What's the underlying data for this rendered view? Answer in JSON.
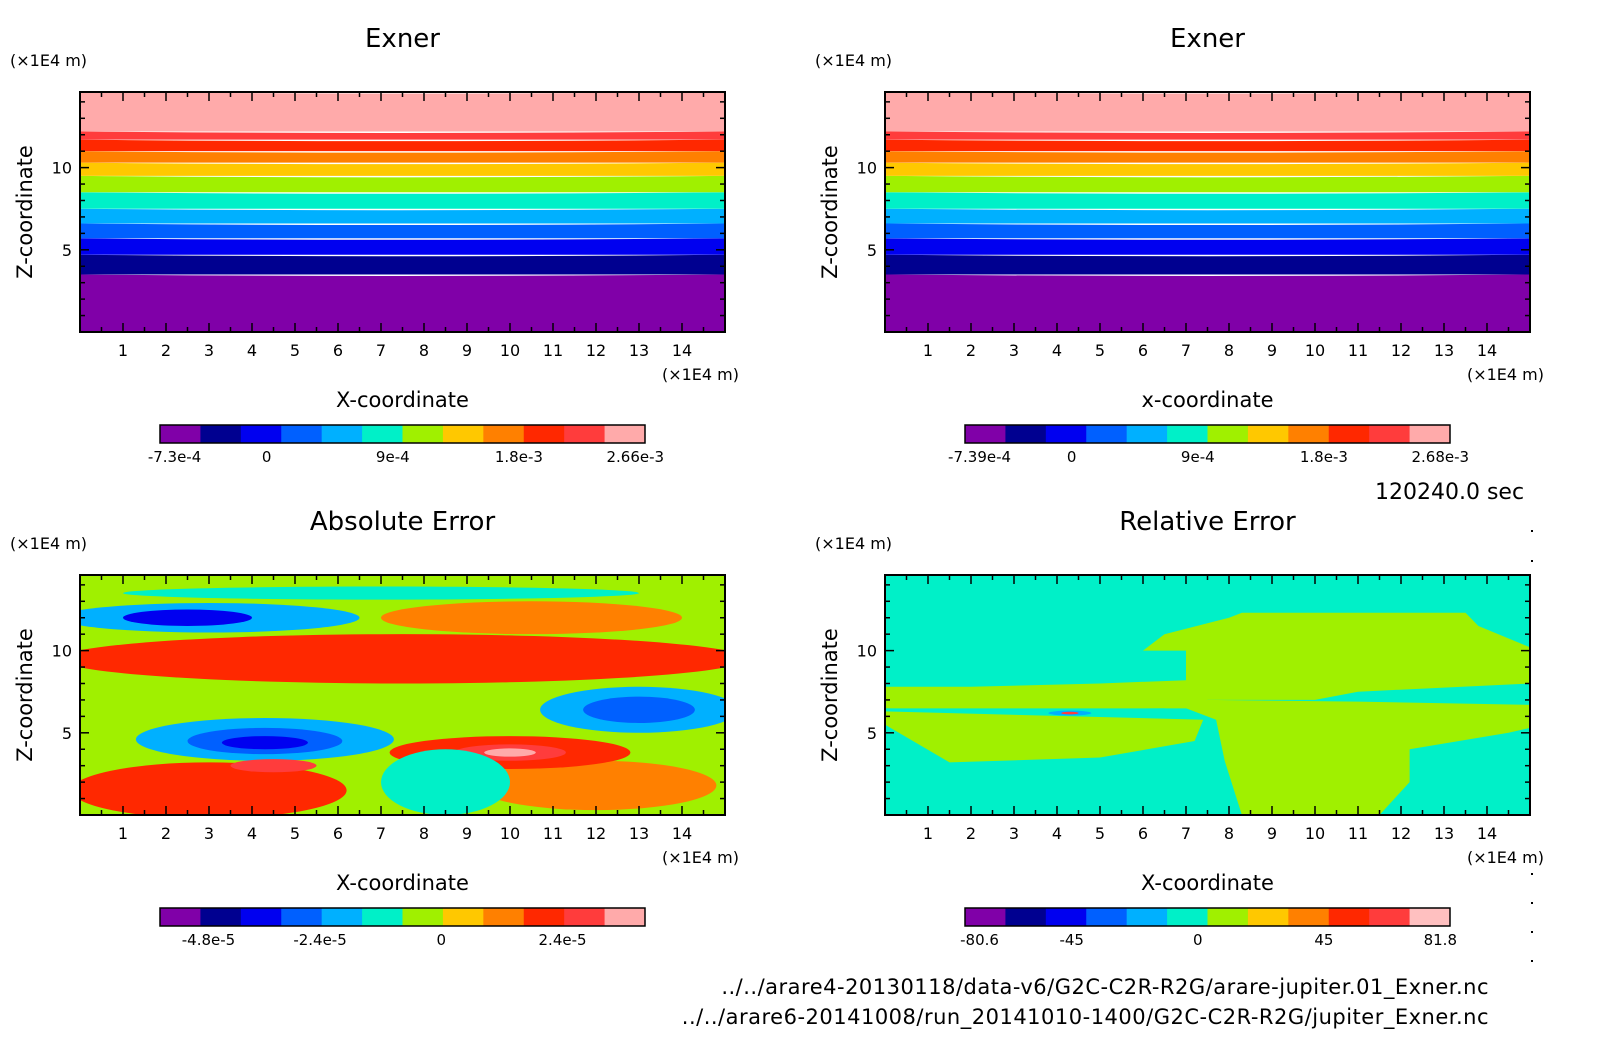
{
  "sim_time": "120240.0 sec",
  "files": [
    "../../arare4-20130118/data-v6/G2C-C2R-R2G/arare-jupiter.01_Exner.nc",
    "../../arare6-20141008/run_20141010-1400/G2C-C2R-R2G/jupiter_Exner.nc"
  ],
  "colors": {
    "palette": [
      "#8000a8",
      "#000090",
      "#0000f0",
      "#0060ff",
      "#00b0ff",
      "#00f0c8",
      "#a0f000",
      "#ffc800",
      "#ff8000",
      "#ff2800",
      "#ff3c3c",
      "#ffaaaa"
    ],
    "pastel": "#ffc0c0"
  },
  "chart_data": [
    {
      "type": "heatmap",
      "title": "Exner",
      "xlabel": "X-coordinate",
      "ylabel": "Z-coordinate",
      "x_unit": "(×1E4 m)",
      "y_unit": "(×1E4 m)",
      "xlim": [
        0,
        15
      ],
      "ylim": [
        0,
        14.6
      ],
      "x_ticks": [
        1,
        2,
        3,
        4,
        5,
        6,
        7,
        8,
        9,
        10,
        11,
        12,
        13,
        14
      ],
      "y_ticks": [
        5,
        10
      ],
      "field": "horizontal bands",
      "band_tops_z": [
        3.5,
        4.7,
        5.7,
        6.6,
        7.5,
        8.5,
        9.5,
        10.3,
        11.0,
        11.7,
        12.2,
        14.6
      ],
      "colorbar_ticks": [
        "-7.3e-4",
        "0",
        "9e-4",
        "1.8e-3",
        "2.66e-3"
      ]
    },
    {
      "type": "heatmap",
      "title": "Exner",
      "xlabel": "x-coordinate",
      "ylabel": "Z-coordinate",
      "x_unit": "(×1E4 m)",
      "y_unit": "(×1E4 m)",
      "xlim": [
        0,
        15
      ],
      "ylim": [
        0,
        14.6
      ],
      "x_ticks": [
        1,
        2,
        3,
        4,
        5,
        6,
        7,
        8,
        9,
        10,
        11,
        12,
        13,
        14
      ],
      "y_ticks": [
        5,
        10
      ],
      "field": "horizontal bands",
      "band_tops_z": [
        3.5,
        4.7,
        5.7,
        6.6,
        7.5,
        8.5,
        9.5,
        10.3,
        11.0,
        11.7,
        12.2,
        14.6
      ],
      "colorbar_ticks": [
        "-7.39e-4",
        "0",
        "9e-4",
        "1.8e-3",
        "2.68e-3"
      ]
    },
    {
      "type": "heatmap",
      "title": "Absolute Error",
      "xlabel": "X-coordinate",
      "ylabel": "Z-coordinate",
      "x_unit": "(×1E4 m)",
      "y_unit": "(×1E4 m)",
      "xlim": [
        0,
        15
      ],
      "ylim": [
        0,
        14.6
      ],
      "x_ticks": [
        1,
        2,
        3,
        4,
        5,
        6,
        7,
        8,
        9,
        10,
        11,
        12,
        13,
        14
      ],
      "y_ticks": [
        5,
        10
      ],
      "field": "blobs",
      "background_level": 6,
      "blobs": [
        {
          "x": 7.5,
          "z": 9.5,
          "rx": 8.0,
          "rz": 1.5,
          "level": 9
        },
        {
          "x": 3.0,
          "z": 1.5,
          "rx": 3.2,
          "rz": 1.7,
          "level": 9
        },
        {
          "x": 12.0,
          "z": 1.8,
          "rx": 2.8,
          "rz": 1.5,
          "level": 8
        },
        {
          "x": 10.5,
          "z": 12.0,
          "rx": 3.5,
          "rz": 1.0,
          "level": 8
        },
        {
          "x": 10.0,
          "z": 3.8,
          "rx": 2.8,
          "rz": 1.0,
          "level": 9
        },
        {
          "x": 10.0,
          "z": 3.8,
          "rx": 1.3,
          "rz": 0.5,
          "level": 10
        },
        {
          "x": 10.0,
          "z": 3.8,
          "rx": 0.6,
          "rz": 0.25,
          "level": 11
        },
        {
          "x": 4.3,
          "z": 4.6,
          "rx": 3.0,
          "rz": 1.3,
          "level": 4
        },
        {
          "x": 4.3,
          "z": 4.5,
          "rx": 1.8,
          "rz": 0.8,
          "level": 3
        },
        {
          "x": 4.3,
          "z": 4.4,
          "rx": 1.0,
          "rz": 0.4,
          "level": 2
        },
        {
          "x": 13.0,
          "z": 6.4,
          "rx": 2.3,
          "rz": 1.4,
          "level": 4
        },
        {
          "x": 13.0,
          "z": 6.4,
          "rx": 1.3,
          "rz": 0.8,
          "level": 3
        },
        {
          "x": 3.0,
          "z": 12.0,
          "rx": 3.5,
          "rz": 0.9,
          "level": 4
        },
        {
          "x": 2.5,
          "z": 12.0,
          "rx": 1.5,
          "rz": 0.5,
          "level": 2
        },
        {
          "x": 7.0,
          "z": 13.5,
          "rx": 6.0,
          "rz": 0.4,
          "level": 5
        },
        {
          "x": 4.5,
          "z": 3.0,
          "rx": 1.0,
          "rz": 0.4,
          "level": 10
        },
        {
          "x": 8.5,
          "z": 2.0,
          "rx": 1.5,
          "rz": 2.0,
          "level": 5
        }
      ],
      "colorbar_ticks": [
        "-4.8e-5",
        "-2.4e-5",
        "0",
        "2.4e-5"
      ]
    },
    {
      "type": "heatmap",
      "title": "Relative Error",
      "xlabel": "X-coordinate",
      "ylabel": "Z-coordinate",
      "x_unit": "(×1E4 m)",
      "y_unit": "(×1E4 m)",
      "xlim": [
        0,
        15
      ],
      "ylim": [
        0,
        14.6
      ],
      "x_ticks": [
        1,
        2,
        3,
        4,
        5,
        6,
        7,
        8,
        9,
        10,
        11,
        12,
        13,
        14
      ],
      "y_ticks": [
        5,
        10
      ],
      "field": "regions",
      "background_level": 5,
      "regions_xz": [
        [
          [
            0,
            10
          ],
          [
            3.5,
            10
          ],
          [
            6,
            10
          ],
          [
            6.5,
            11
          ],
          [
            8,
            12
          ],
          [
            8.3,
            12.3
          ],
          [
            13.5,
            12.3
          ],
          [
            13.8,
            11.5
          ],
          [
            15,
            10.2
          ],
          [
            15,
            8
          ],
          [
            11,
            7.5
          ],
          [
            10,
            7
          ],
          [
            7.5,
            7
          ],
          [
            7,
            6.5
          ],
          [
            0,
            6.5
          ],
          [
            0,
            7.8
          ],
          [
            2,
            7.8
          ],
          [
            5,
            8
          ],
          [
            7,
            8.2
          ],
          [
            7,
            10
          ],
          [
            0,
            10
          ]
        ],
        [
          [
            0,
            6.5
          ],
          [
            7,
            6.5
          ],
          [
            7.7,
            5.8
          ],
          [
            7.9,
            3.3
          ],
          [
            8.3,
            0
          ],
          [
            11.5,
            0
          ],
          [
            12.2,
            2.0
          ],
          [
            12.2,
            4.0
          ],
          [
            14.5,
            5.0
          ],
          [
            15,
            5.3
          ],
          [
            15,
            6.7
          ],
          [
            11,
            6.9
          ],
          [
            7.5,
            7.0
          ],
          [
            6.5,
            6.5
          ],
          [
            2,
            6.6
          ],
          [
            0,
            6.5
          ]
        ],
        [
          [
            0,
            5.5
          ],
          [
            1.5,
            3.2
          ],
          [
            5,
            3.5
          ],
          [
            7.2,
            4.5
          ],
          [
            7.4,
            5.8
          ],
          [
            0,
            6.3
          ]
        ]
      ],
      "spots": [
        {
          "x": 4.3,
          "z": 6.2,
          "rx": 0.5,
          "rz": 0.15,
          "level": 4
        },
        {
          "x": 4.3,
          "z": 6.2,
          "rx": 0.2,
          "rz": 0.08,
          "level": 10
        }
      ],
      "colorbar_ticks": [
        "-80.6",
        "-45",
        "0",
        "45",
        "81.8"
      ]
    }
  ]
}
